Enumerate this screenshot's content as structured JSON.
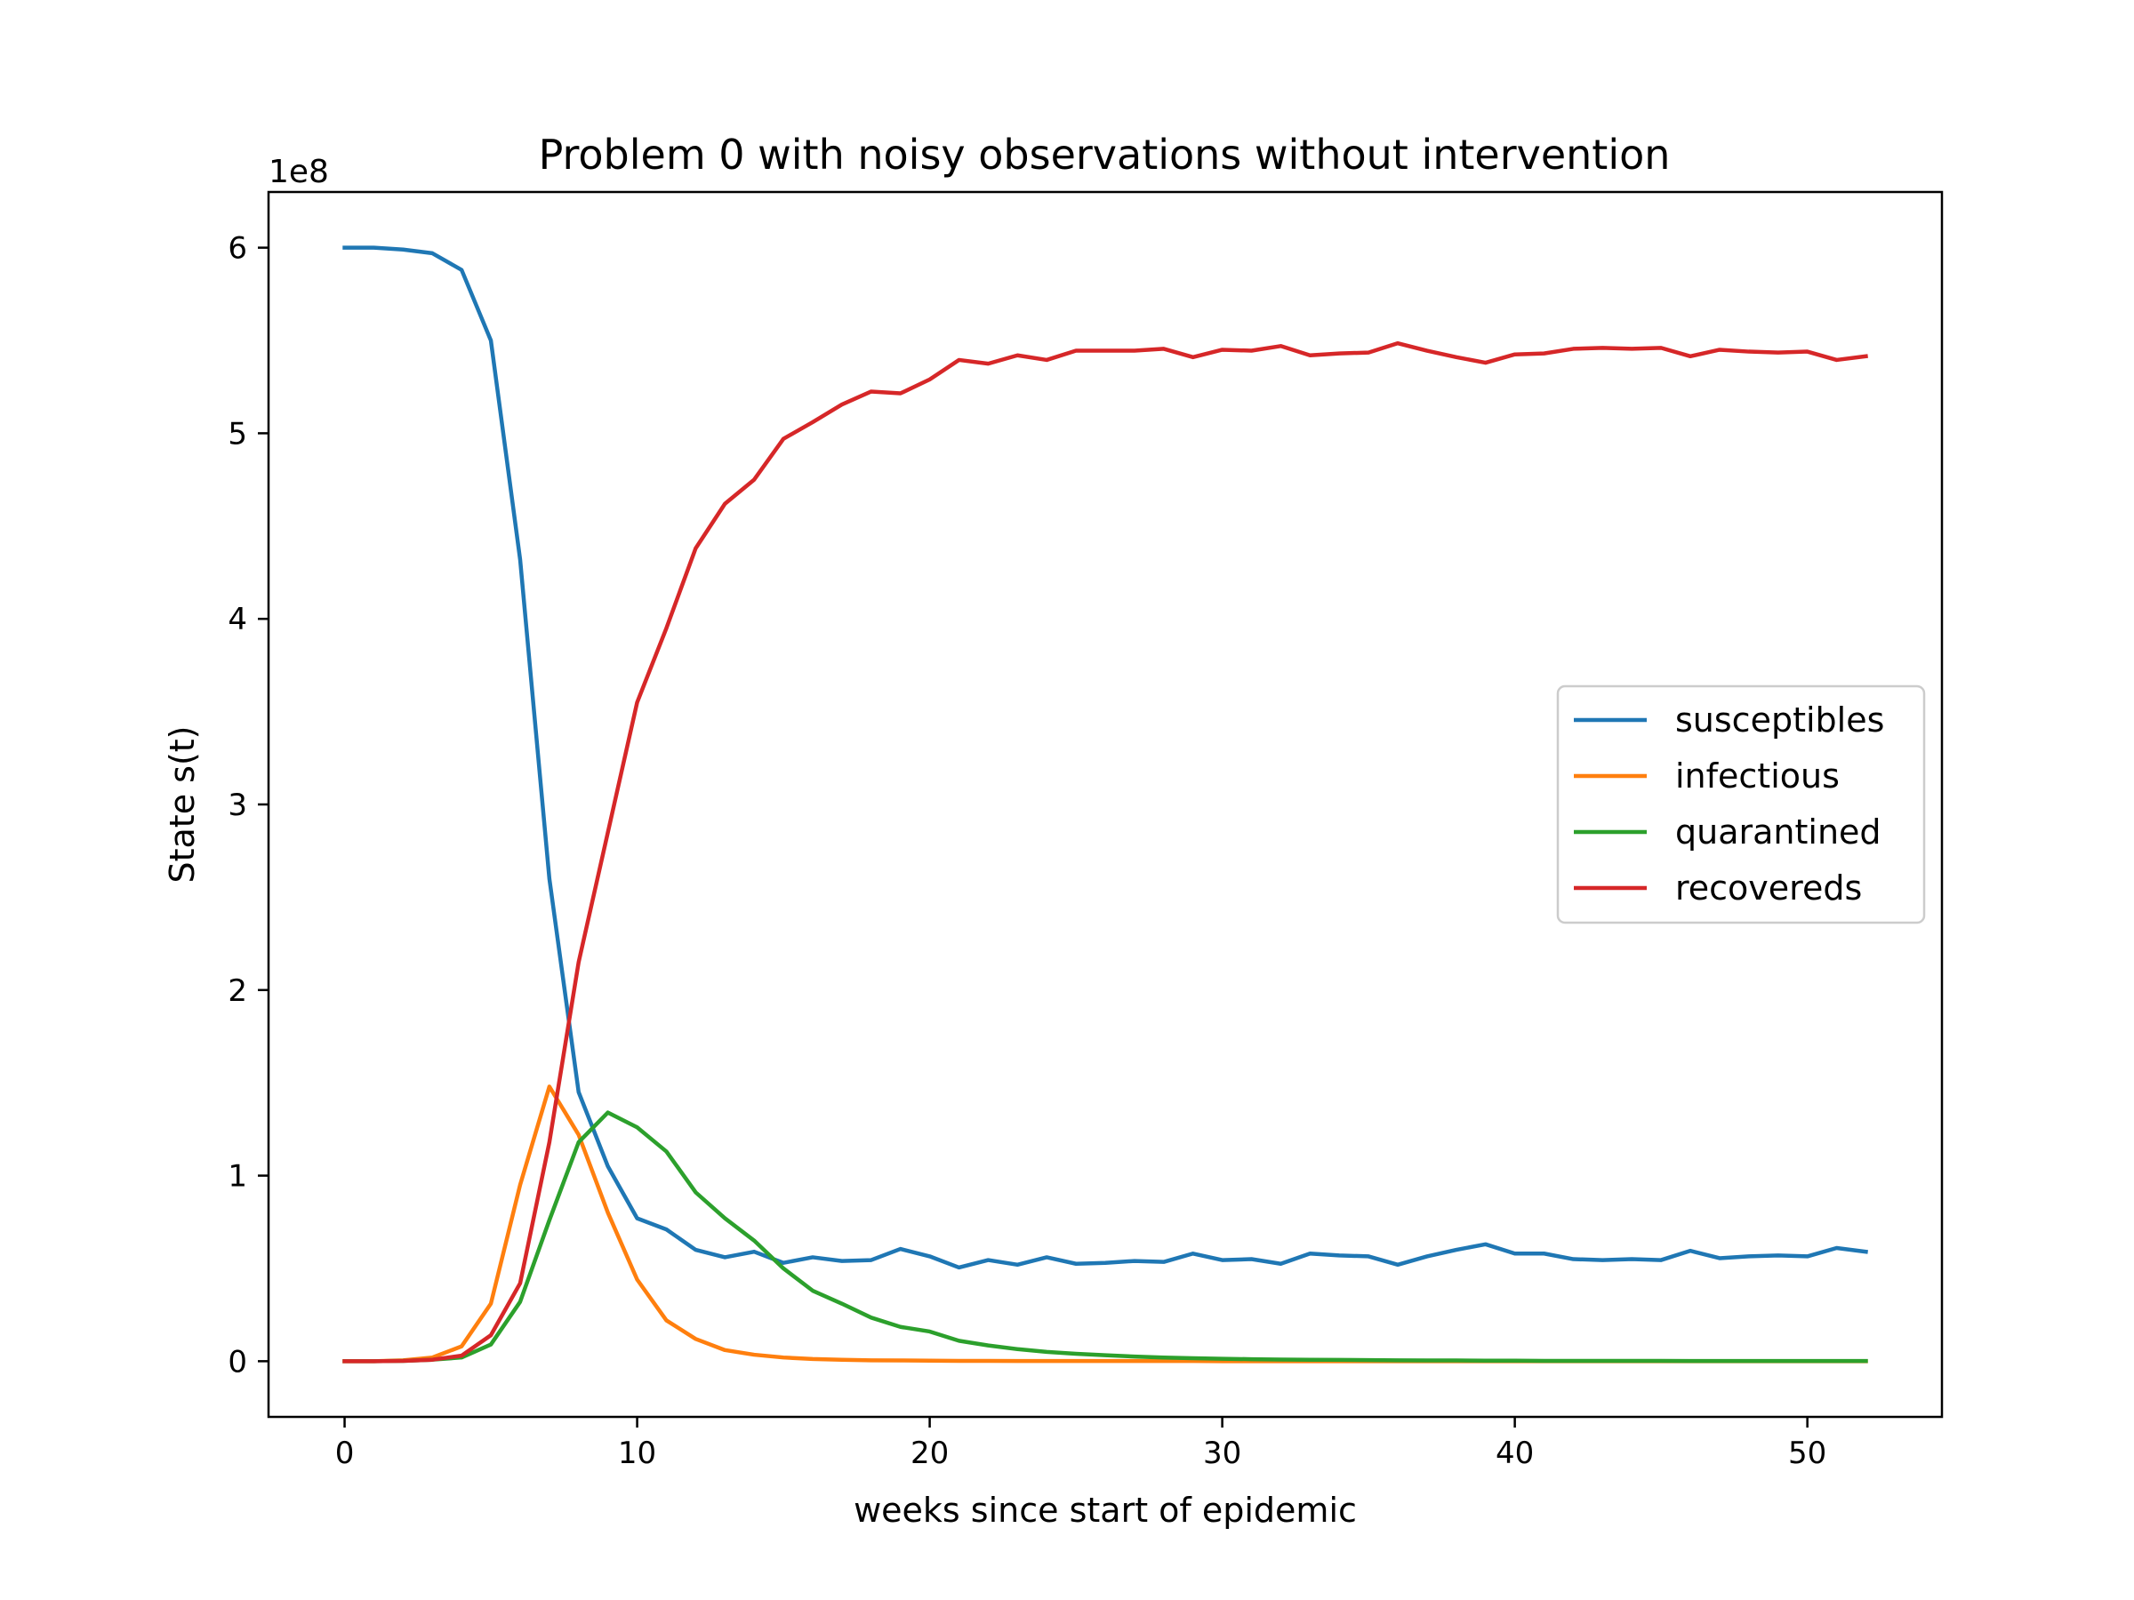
{
  "chart_data": {
    "type": "line",
    "title": "Problem 0 with noisy observations without intervention",
    "xlabel": "weeks since start of epidemic",
    "ylabel": "State s(t)",
    "y_offset_label": "1e8",
    "xlim": [
      -2.6,
      54.6
    ],
    "ylim": [
      -0.3,
      6.3
    ],
    "y_unit_scale": 100000000,
    "x_ticks": [
      0,
      10,
      20,
      30,
      40,
      50
    ],
    "y_ticks": [
      0,
      1,
      2,
      3,
      4,
      5,
      6
    ],
    "grid": false,
    "legend_position": "center-right",
    "x": [
      0,
      1,
      2,
      3,
      4,
      5,
      6,
      7,
      8,
      9,
      10,
      11,
      12,
      13,
      14,
      15,
      16,
      17,
      18,
      19,
      20,
      21,
      22,
      23,
      24,
      25,
      26,
      27,
      28,
      29,
      30,
      31,
      32,
      33,
      34,
      35,
      36,
      37,
      38,
      39,
      40,
      41,
      42,
      43,
      44,
      45,
      46,
      47,
      48,
      49,
      50,
      51,
      52
    ],
    "series": [
      {
        "name": "susceptibles",
        "color": "#1f77b4",
        "values": [
          6.0,
          6.0,
          5.99,
          5.97,
          5.88,
          5.5,
          4.32,
          2.6,
          1.45,
          1.05,
          0.77,
          0.71,
          0.6,
          0.56,
          0.59,
          0.53,
          0.56,
          0.54,
          0.545,
          0.605,
          0.565,
          0.505,
          0.545,
          0.52,
          0.56,
          0.525,
          0.53,
          0.54,
          0.535,
          0.58,
          0.545,
          0.55,
          0.525,
          0.58,
          0.57,
          0.565,
          0.52,
          0.565,
          0.6,
          0.63,
          0.58,
          0.58,
          0.55,
          0.545,
          0.55,
          0.545,
          0.595,
          0.555,
          0.565,
          0.57,
          0.565,
          0.61,
          0.59
        ]
      },
      {
        "name": "infectious",
        "color": "#ff7f0e",
        "values": [
          0.0,
          0.0,
          0.005,
          0.02,
          0.08,
          0.31,
          0.95,
          1.48,
          1.22,
          0.8,
          0.44,
          0.22,
          0.12,
          0.06,
          0.035,
          0.02,
          0.012,
          0.008,
          0.005,
          0.004,
          0.003,
          0.002,
          0.002,
          0.001,
          0.001,
          0.001,
          0.001,
          0.001,
          0.001,
          0.001,
          0.0,
          0.0,
          0.0,
          0.0,
          0.0,
          0.0,
          0.0,
          0.0,
          0.0,
          0.0,
          0.0,
          0.0,
          0.0,
          0.0,
          0.0,
          0.0,
          0.0,
          0.0,
          0.0,
          0.0,
          0.0,
          0.0,
          0.0
        ]
      },
      {
        "name": "quarantined",
        "color": "#2ca02c",
        "values": [
          0.0,
          0.0,
          0.002,
          0.008,
          0.02,
          0.09,
          0.32,
          0.76,
          1.18,
          1.34,
          1.26,
          1.13,
          0.91,
          0.77,
          0.65,
          0.5,
          0.38,
          0.31,
          0.235,
          0.185,
          0.16,
          0.11,
          0.085,
          0.065,
          0.05,
          0.04,
          0.032,
          0.025,
          0.02,
          0.016,
          0.013,
          0.011,
          0.009,
          0.008,
          0.007,
          0.006,
          0.005,
          0.004,
          0.004,
          0.003,
          0.003,
          0.002,
          0.002,
          0.002,
          0.002,
          0.002,
          0.001,
          0.001,
          0.001,
          0.001,
          0.001,
          0.001,
          0.001
        ]
      },
      {
        "name": "recovereds",
        "color": "#d62728",
        "values": [
          0.0,
          0.0,
          0.002,
          0.008,
          0.03,
          0.14,
          0.42,
          1.18,
          2.15,
          2.85,
          3.55,
          3.95,
          4.38,
          4.62,
          4.75,
          4.97,
          5.06,
          5.155,
          5.225,
          5.215,
          5.29,
          5.395,
          5.375,
          5.42,
          5.395,
          5.445,
          5.445,
          5.445,
          5.455,
          5.41,
          5.45,
          5.445,
          5.47,
          5.42,
          5.43,
          5.435,
          5.485,
          5.445,
          5.41,
          5.38,
          5.425,
          5.43,
          5.455,
          5.46,
          5.455,
          5.46,
          5.415,
          5.45,
          5.44,
          5.435,
          5.44,
          5.395,
          5.415
        ]
      }
    ]
  }
}
